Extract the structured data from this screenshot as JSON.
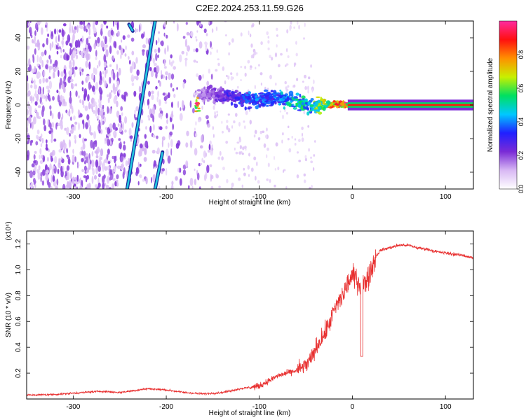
{
  "title": "C2E2.2024.253.11.59.G26",
  "chart_data": [
    {
      "type": "heatmap",
      "title": "C2E2.2024.253.11.59.G26",
      "xlabel": "Height of straight line (km)",
      "ylabel": "Frequency (Hz)",
      "xlim": [
        -350,
        130
      ],
      "ylim": [
        -50,
        50
      ],
      "x_ticks": [
        -300,
        -200,
        -100,
        0,
        100
      ],
      "x_tick_labels": [
        "-300",
        "-200",
        "-100",
        "0",
        "100"
      ],
      "y_ticks": [
        -40,
        -20,
        0,
        20,
        40
      ],
      "y_tick_labels": [
        "-40",
        "-20",
        "0",
        "20",
        "40"
      ],
      "colorbar": {
        "label": "Normalized spectral amplitude",
        "range": [
          0.0,
          1.0
        ],
        "ticks": [
          0.0,
          0.2,
          0.4,
          0.6,
          0.8
        ],
        "tick_labels": [
          "0.0",
          "0.2",
          "0.4",
          "0.6",
          "0.8"
        ],
        "colormap": [
          "#ffffff",
          "#d8b8f4",
          "#7a2bd6",
          "#2020ff",
          "#00c8ff",
          "#00e060",
          "#c8f000",
          "#ff9000",
          "#ff1010",
          "#ff2aa0"
        ]
      },
      "features": {
        "diagonal_streaks": [
          {
            "x_start": -242,
            "f_start": -50,
            "x_end": -212,
            "f_end": 50
          },
          {
            "x_start": -240,
            "f_start": 48,
            "x_end": -236,
            "f_end": 44
          },
          {
            "x_start": -212,
            "f_start": -50,
            "x_end": -204,
            "f_end": -28
          }
        ],
        "main_tone": [
          {
            "x": -165,
            "f": 6,
            "amp": 0.18
          },
          {
            "x": -150,
            "f": 6,
            "amp": 0.22
          },
          {
            "x": -135,
            "f": 5,
            "amp": 0.3
          },
          {
            "x": -120,
            "f": 4,
            "amp": 0.35
          },
          {
            "x": -105,
            "f": 3,
            "amp": 0.4
          },
          {
            "x": -90,
            "f": 4,
            "amp": 0.4
          },
          {
            "x": -75,
            "f": 4,
            "amp": 0.45
          },
          {
            "x": -60,
            "f": 2,
            "amp": 0.55
          },
          {
            "x": -45,
            "f": -1,
            "amp": 0.55
          },
          {
            "x": -30,
            "f": 0,
            "amp": 0.75
          },
          {
            "x": -15,
            "f": 0.5,
            "amp": 0.9
          },
          {
            "x": 0,
            "f": 0,
            "amp": 0.95
          },
          {
            "x": 30,
            "f": 0,
            "amp": 1.0
          },
          {
            "x": 70,
            "f": 0,
            "amp": 1.0
          },
          {
            "x": 130,
            "f": 0,
            "amp": 0.95
          }
        ]
      }
    },
    {
      "type": "line",
      "xlabel": "Height of straight line (km)",
      "ylabel": "SNR (10 * v/v)",
      "y_scale_label": "(x10⁴)",
      "xlim": [
        -350,
        130
      ],
      "ylim": [
        0,
        1.3
      ],
      "x_ticks": [
        -300,
        -200,
        -100,
        0,
        100
      ],
      "x_tick_labels": [
        "-300",
        "-200",
        "-100",
        "0",
        "100"
      ],
      "y_ticks": [
        0.2,
        0.4,
        0.6,
        0.8,
        1.0,
        1.2
      ],
      "y_tick_labels": [
        "0.2",
        "0.4",
        "0.6",
        "0.8",
        "1.0",
        "1.2"
      ],
      "series": [
        {
          "name": "SNR",
          "color": "#e83030",
          "x": [
            -350,
            -320,
            -290,
            -270,
            -250,
            -220,
            -200,
            -180,
            -160,
            -140,
            -120,
            -100,
            -90,
            -80,
            -70,
            -60,
            -50,
            -45,
            -40,
            -35,
            -30,
            -25,
            -20,
            -15,
            -10,
            -5,
            0,
            5,
            10,
            15,
            20,
            25,
            30,
            40,
            50,
            60,
            70,
            80,
            90,
            100,
            110,
            120,
            130
          ],
          "values": [
            0.03,
            0.035,
            0.05,
            0.06,
            0.05,
            0.08,
            0.07,
            0.05,
            0.04,
            0.05,
            0.08,
            0.1,
            0.14,
            0.18,
            0.2,
            0.22,
            0.26,
            0.3,
            0.38,
            0.45,
            0.5,
            0.58,
            0.68,
            0.75,
            0.8,
            0.9,
            0.95,
            0.93,
            0.85,
            0.92,
            1.0,
            1.1,
            1.15,
            1.17,
            1.19,
            1.19,
            1.17,
            1.16,
            1.14,
            1.13,
            1.12,
            1.11,
            1.09
          ]
        }
      ]
    }
  ]
}
